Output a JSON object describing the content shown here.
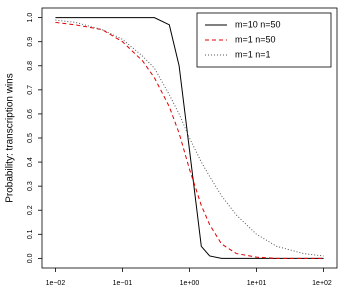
{
  "chart_data": {
    "type": "line",
    "y_label": "Probability: transcription wins",
    "x": [
      0.01,
      0.02,
      0.05,
      0.1,
      0.2,
      0.3,
      0.5,
      0.7,
      1,
      1.5,
      2,
      3,
      5,
      10,
      20,
      50,
      100
    ],
    "series": [
      {
        "name": "m=10 n=50",
        "color": "#000000",
        "dash": "solid",
        "values": [
          1,
          1,
          1,
          1,
          1,
          1,
          0.97,
          0.8,
          0.45,
          0.05,
          0.01,
          0,
          0,
          0,
          0,
          0,
          0
        ]
      },
      {
        "name": "m=1 n=50",
        "color": "#e00000",
        "dash": "dashed",
        "values": [
          0.98,
          0.97,
          0.95,
          0.9,
          0.82,
          0.75,
          0.63,
          0.52,
          0.37,
          0.22,
          0.14,
          0.06,
          0.02,
          0.005,
          0,
          0,
          0
        ]
      },
      {
        "name": "m=1 n=1",
        "color": "#555555",
        "dash": "dotted",
        "values": [
          0.99,
          0.98,
          0.95,
          0.91,
          0.84,
          0.79,
          0.68,
          0.6,
          0.5,
          0.4,
          0.34,
          0.26,
          0.18,
          0.1,
          0.05,
          0.02,
          0.01
        ]
      }
    ],
    "xlog": true,
    "xlim": [
      0.00631,
      158.5
    ],
    "xticks": [
      {
        "value": 0.01,
        "label": "1e−02"
      },
      {
        "value": 0.1,
        "label": "1e−01"
      },
      {
        "value": 1,
        "label": "1e+00"
      },
      {
        "value": 10,
        "label": "1e+01"
      },
      {
        "value": 100,
        "label": "1e+02"
      }
    ],
    "ylim": [
      -0.04,
      1.04
    ],
    "yticks": [
      {
        "value": 0,
        "label": "0.0"
      },
      0.1,
      0.2,
      0.3,
      0.4,
      0.5,
      0.6,
      0.7,
      0.8,
      0.9,
      {
        "value": 1,
        "label": "1.0"
      }
    ],
    "legend": "top-right"
  }
}
